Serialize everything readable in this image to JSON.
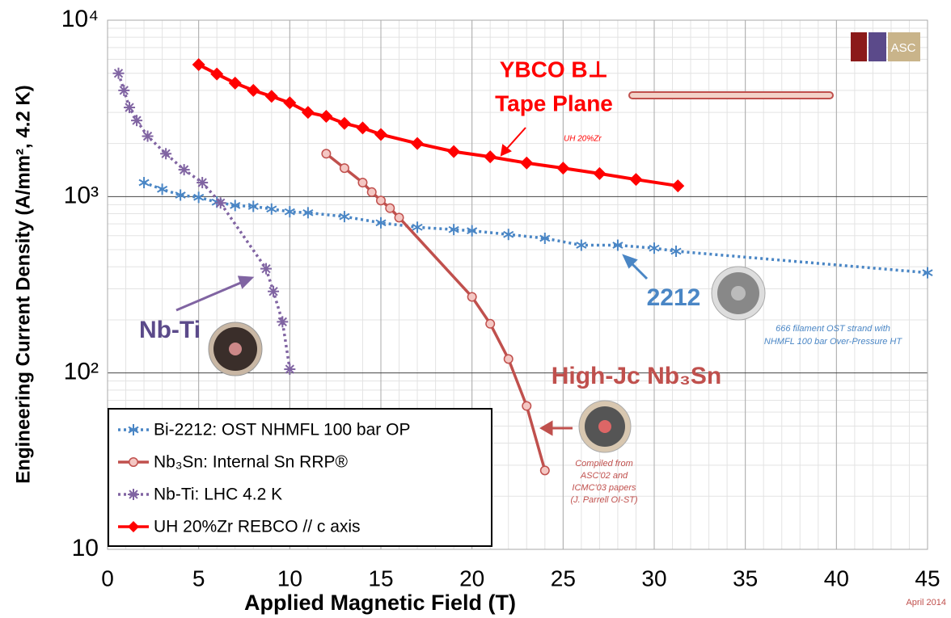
{
  "chart_data": {
    "type": "line",
    "x_label": "Applied Magnetic Field (T)",
    "y_label": "Engineering Current Density (A/mm², 4.2 K)",
    "log_y": true,
    "grid": true,
    "minor_grid": true,
    "legend": "lower-left",
    "xlim": [
      0,
      45
    ],
    "xticks": [
      0,
      5,
      10,
      15,
      20,
      25,
      30,
      35,
      40,
      45
    ],
    "ylim": [
      10,
      10000
    ],
    "yticks": [
      {
        "value": 10,
        "label": "10"
      },
      {
        "value": 100,
        "label": "10²"
      },
      {
        "value": 1000,
        "label": "10³"
      },
      {
        "value": 10000,
        "label": "10⁴"
      }
    ],
    "series": [
      {
        "name": "Bi-2212: OST NHMFL 100 bar OP",
        "color": "#4a86c5",
        "line_style": "dotted",
        "marker": "asterisk",
        "x": [
          2,
          3,
          4,
          5,
          6,
          7,
          8,
          9,
          10,
          11,
          13,
          15,
          17,
          19,
          20,
          22,
          24,
          26,
          28,
          30,
          31.2,
          45
        ],
        "values": [
          1200,
          1100,
          1020,
          990,
          930,
          890,
          880,
          850,
          820,
          810,
          770,
          710,
          670,
          650,
          640,
          610,
          580,
          530,
          530,
          510,
          490,
          370
        ]
      },
      {
        "name": "Nb₃Sn: Internal Sn RRP®",
        "color": "#c0504d",
        "line_style": "solid",
        "marker": "circle",
        "x": [
          12,
          13,
          14,
          14.5,
          15,
          15.5,
          16,
          20,
          21,
          22,
          23,
          24
        ],
        "values": [
          1750,
          1450,
          1200,
          1060,
          950,
          860,
          760,
          270,
          190,
          120,
          65,
          28
        ]
      },
      {
        "name": "Nb-Ti: LHC 4.2 K",
        "color": "#8064a2",
        "line_style": "dotted",
        "marker": "star",
        "x": [
          0.6,
          0.9,
          1.2,
          1.6,
          2.2,
          3.2,
          4.2,
          5.2,
          6.2,
          8.7,
          9.1,
          9.6,
          10
        ],
        "values": [
          5000,
          4000,
          3200,
          2700,
          2200,
          1750,
          1420,
          1200,
          920,
          390,
          290,
          195,
          105
        ]
      },
      {
        "name": "UH 20%Zr REBCO // c axis",
        "color": "#ff0000",
        "line_style": "solid",
        "marker": "diamond",
        "x": [
          5,
          6,
          7,
          8,
          9,
          10,
          11,
          12,
          13,
          14,
          15,
          17,
          19,
          21,
          23,
          25,
          27,
          29,
          31.3
        ],
        "values": [
          5600,
          4950,
          4400,
          4000,
          3700,
          3400,
          3000,
          2850,
          2600,
          2450,
          2250,
          2000,
          1800,
          1680,
          1550,
          1450,
          1350,
          1250,
          1150
        ]
      }
    ],
    "annotations": [
      "YBCO B⊥",
      "Tape Plane",
      "UH 20%Zr",
      "2212",
      "666 filament OST strand with",
      "NHMFL 100 bar Over-Pressure HT",
      "Nb-Ti",
      "High-Jc Nb₃Sn",
      "Compiled from",
      "ASC'02 and",
      "ICMC'03 papers",
      "(J. Parrell OI-ST)",
      "April 2014"
    ],
    "logo_text": "ASC"
  }
}
